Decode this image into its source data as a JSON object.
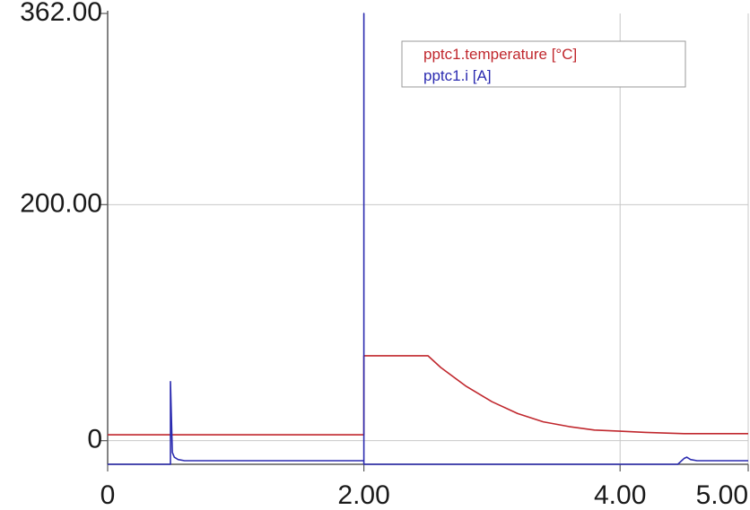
{
  "chart_data": {
    "type": "line",
    "xlim": [
      0,
      5.0
    ],
    "ylim": [
      -20,
      362
    ],
    "x_ticks": [
      {
        "value": 0,
        "label": "0"
      },
      {
        "value": 2.0,
        "label": "2.00"
      },
      {
        "value": 4.0,
        "label": "4.00"
      },
      {
        "value": 5.0,
        "label": "5.00"
      }
    ],
    "y_ticks": [
      {
        "value": 0,
        "label": "0"
      },
      {
        "value": 200,
        "label": "200.00"
      },
      {
        "value": 362,
        "label": "362.00"
      }
    ],
    "grid": true,
    "legend_position": "top-right",
    "series": [
      {
        "name": "pptc1.temperature [°C]",
        "color": "#c0272d",
        "x": [
          0,
          2.0,
          2.0,
          2.5,
          2.6,
          2.8,
          3.0,
          3.2,
          3.4,
          3.6,
          3.8,
          4.0,
          4.2,
          4.5,
          4.8,
          5.0
        ],
        "y": [
          5,
          5,
          72,
          72,
          62,
          46,
          33,
          23,
          16,
          12,
          9,
          8,
          7,
          6,
          6,
          6
        ]
      },
      {
        "name": "pptc1.i [A]",
        "color": "#2b2bb0",
        "x": [
          0,
          0.49,
          0.49,
          0.505,
          0.52,
          0.55,
          0.6,
          0.7,
          0.8,
          2.0,
          2.0,
          2.0,
          2.0,
          4.45,
          4.5,
          4.52,
          4.55,
          4.6,
          5.0
        ],
        "y": [
          -20,
          -20,
          50,
          -10,
          -14,
          -16,
          -17,
          -17,
          -17,
          -17,
          362,
          -17,
          -20,
          -20,
          -15,
          -14,
          -16,
          -17,
          -17
        ]
      }
    ]
  }
}
